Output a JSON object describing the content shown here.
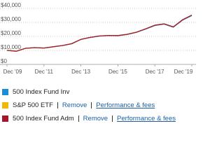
{
  "chart_data": {
    "type": "line",
    "categories": [
      "Dec '09",
      null,
      null,
      null,
      "Dec '11",
      null,
      null,
      null,
      "Dec '13",
      null,
      null,
      null,
      "Dec '15",
      null,
      null,
      null,
      "Dec '17",
      null,
      null,
      null,
      "Dec '19"
    ],
    "series": [
      {
        "name": "500 Index Fund Inv",
        "color": "#1a8fd6",
        "values": [
          10000,
          9400,
          11450,
          11950,
          11650,
          12550,
          13450,
          14700,
          17800,
          19200,
          20200,
          20550,
          20450,
          21350,
          22850,
          25200,
          27750,
          28750,
          26550,
          31600,
          34850
        ]
      },
      {
        "name": "S&P 500 ETF",
        "color": "#f2b705",
        "values": [
          10000,
          9400,
          11500,
          12000,
          11700,
          12600,
          13500,
          14800,
          17900,
          19300,
          20300,
          20700,
          20600,
          21500,
          23000,
          25400,
          28000,
          29000,
          26800,
          31900,
          35200
        ],
        "links": [
          "Remove",
          "Performance & fees"
        ]
      },
      {
        "name": "500 Index Fund Adm",
        "color": "#a3172e",
        "values": [
          10000,
          9400,
          11500,
          12000,
          11700,
          12600,
          13500,
          14800,
          17900,
          19300,
          20300,
          20700,
          20600,
          21500,
          23000,
          25400,
          28000,
          29000,
          26800,
          31900,
          35200
        ],
        "links": [
          "Remove",
          "Performance & fees"
        ]
      }
    ],
    "ylim": [
      0,
      40000
    ],
    "yticks": [
      {
        "value": 0,
        "label": "$0"
      },
      {
        "value": 10000,
        "label": "$10,000"
      },
      {
        "value": 20000,
        "label": "$20,000"
      },
      {
        "value": 30000,
        "label": "$30,000"
      },
      {
        "value": 40000,
        "label": "$40,000"
      }
    ],
    "grid": true
  }
}
